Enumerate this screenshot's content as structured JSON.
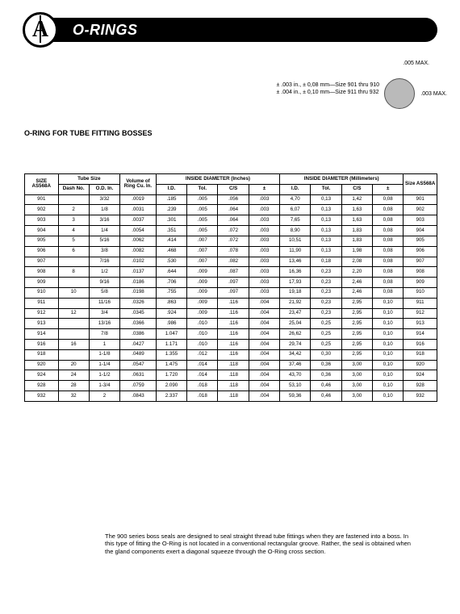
{
  "header": {
    "title": "O-RINGS"
  },
  "diagram": {
    "top_label": ".005 MAX.",
    "left_line1": "± .003 in., ± 0,08 mm—Size 901 thru 910",
    "left_line2": "± .004 in., ± 0,10 mm—Size 911 thru 932",
    "right_label": ".003 MAX."
  },
  "section_title": "O-RING FOR TUBE FITTING BOSSES",
  "table": {
    "headers": {
      "size": "SIZE AS568A",
      "tube_size": "Tube Size",
      "dash": "Dash No.",
      "od": "O.D. In.",
      "vol": "Volume of Ring Cu. In.",
      "id_in": "INSIDE DIAMETER (Inches)",
      "id_mm": "INSIDE DIAMETER (Millimeters)",
      "id": "I.D.",
      "tol": "Tol.",
      "cs": "C/S",
      "pm": "±",
      "size2": "Size AS568A"
    },
    "rows": [
      {
        "size": "901",
        "dash": "",
        "od": "3/32",
        "vol": ".0019",
        "iid": ".185",
        "itol": ".005",
        "ics": ".056",
        "ipm": ".003",
        "mid": "4,70",
        "mtol": "0,13",
        "mcs": "1,42",
        "mpm": "0,08",
        "size2": "901"
      },
      {
        "size": "902",
        "dash": "2",
        "od": "1/8",
        "vol": ".0031",
        "iid": ".239",
        "itol": ".005",
        "ics": ".064",
        "ipm": ".003",
        "mid": "6,07",
        "mtol": "0,13",
        "mcs": "1,63",
        "mpm": "0,08",
        "size2": "902"
      },
      {
        "size": "903",
        "dash": "3",
        "od": "3/16",
        "vol": ".0037",
        "iid": ".301",
        "itol": ".005",
        "ics": ".064",
        "ipm": ".003",
        "mid": "7,65",
        "mtol": "0,13",
        "mcs": "1,63",
        "mpm": "0,08",
        "size2": "903"
      },
      {
        "size": "904",
        "dash": "4",
        "od": "1/4",
        "vol": ".0054",
        "iid": ".351",
        "itol": ".005",
        "ics": ".072",
        "ipm": ".003",
        "mid": "8,90",
        "mtol": "0,13",
        "mcs": "1,83",
        "mpm": "0,08",
        "size2": "904"
      },
      {
        "size": "905",
        "dash": "5",
        "od": "5/16",
        "vol": ".0062",
        "iid": ".414",
        "itol": ".007",
        "ics": ".072",
        "ipm": ".003",
        "mid": "10,51",
        "mtol": "0,13",
        "mcs": "1,83",
        "mpm": "0,08",
        "size2": "905"
      },
      {
        "size": "906",
        "dash": "6",
        "od": "3/8",
        "vol": ".0082",
        "iid": ".468",
        "itol": ".007",
        "ics": ".078",
        "ipm": ".003",
        "mid": "11,90",
        "mtol": "0,13",
        "mcs": "1,98",
        "mpm": "0,08",
        "size2": "906"
      },
      {
        "size": "907",
        "dash": "",
        "od": "7/16",
        "vol": ".0102",
        "iid": ".530",
        "itol": ".007",
        "ics": ".082",
        "ipm": ".003",
        "mid": "13,46",
        "mtol": "0,18",
        "mcs": "2,08",
        "mpm": "0,08",
        "size2": "907"
      },
      {
        "size": "908",
        "dash": "8",
        "od": "1/2",
        "vol": ".0137",
        "iid": ".644",
        "itol": ".009",
        "ics": ".087",
        "ipm": ".003",
        "mid": "16,36",
        "mtol": "0,23",
        "mcs": "2,20",
        "mpm": "0,08",
        "size2": "908"
      },
      {
        "size": "909",
        "dash": "",
        "od": "9/16",
        "vol": ".0186",
        "iid": ".706",
        "itol": ".009",
        "ics": ".097",
        "ipm": ".003",
        "mid": "17,93",
        "mtol": "0,23",
        "mcs": "2,46",
        "mpm": "0,08",
        "size2": "909"
      },
      {
        "size": "910",
        "dash": "10",
        "od": "5/8",
        "vol": ".0198",
        "iid": ".755",
        "itol": ".009",
        "ics": ".097",
        "ipm": ".003",
        "mid": "19,18",
        "mtol": "0,23",
        "mcs": "2,46",
        "mpm": "0,08",
        "size2": "910"
      },
      {
        "size": "911",
        "dash": "",
        "od": "11/16",
        "vol": ".0326",
        "iid": ".863",
        "itol": ".009",
        "ics": ".116",
        "ipm": ".004",
        "mid": "21,92",
        "mtol": "0,23",
        "mcs": "2,95",
        "mpm": "0,10",
        "size2": "911"
      },
      {
        "size": "912",
        "dash": "12",
        "od": "3/4",
        "vol": ".0345",
        "iid": ".924",
        "itol": ".009",
        "ics": ".116",
        "ipm": ".004",
        "mid": "23,47",
        "mtol": "0,23",
        "mcs": "2,95",
        "mpm": "0,10",
        "size2": "912"
      },
      {
        "size": "913",
        "dash": "",
        "od": "13/16",
        "vol": ".0366",
        "iid": ".986",
        "itol": ".010",
        "ics": ".116",
        "ipm": ".004",
        "mid": "25,04",
        "mtol": "0,25",
        "mcs": "2,95",
        "mpm": "0,10",
        "size2": "913"
      },
      {
        "size": "914",
        "dash": "",
        "od": "7/8",
        "vol": ".0386",
        "iid": "1.047",
        "itol": ".010",
        "ics": ".116",
        "ipm": ".004",
        "mid": "26,62",
        "mtol": "0,25",
        "mcs": "2,95",
        "mpm": "0,10",
        "size2": "914"
      },
      {
        "size": "916",
        "dash": "16",
        "od": "1",
        "vol": ".0427",
        "iid": "1.171",
        "itol": ".010",
        "ics": ".116",
        "ipm": ".004",
        "mid": "29,74",
        "mtol": "0,25",
        "mcs": "2,95",
        "mpm": "0,10",
        "size2": "916"
      },
      {
        "size": "918",
        "dash": "",
        "od": "1-1/8",
        "vol": ".0489",
        "iid": "1.355",
        "itol": ".012",
        "ics": ".116",
        "ipm": ".004",
        "mid": "34,42",
        "mtol": "0,30",
        "mcs": "2,95",
        "mpm": "0,10",
        "size2": "918"
      },
      {
        "size": "920",
        "dash": "20",
        "od": "1-1/4",
        "vol": ".0547",
        "iid": "1.475",
        "itol": ".014",
        "ics": ".118",
        "ipm": ".004",
        "mid": "37,46",
        "mtol": "0,36",
        "mcs": "3,00",
        "mpm": "0,10",
        "size2": "920"
      },
      {
        "size": "924",
        "dash": "24",
        "od": "1-1/2",
        "vol": ".0631",
        "iid": "1.720",
        "itol": ".014",
        "ics": ".118",
        "ipm": ".004",
        "mid": "43,70",
        "mtol": "0,36",
        "mcs": "3,00",
        "mpm": "0,10",
        "size2": "924"
      },
      {
        "size": "928",
        "dash": "28",
        "od": "1-3/4",
        "vol": ".0759",
        "iid": "2.090",
        "itol": ".018",
        "ics": ".118",
        "ipm": ".004",
        "mid": "53,10",
        "mtol": "0,46",
        "mcs": "3,00",
        "mpm": "0,10",
        "size2": "928"
      },
      {
        "size": "932",
        "dash": "32",
        "od": "2",
        "vol": ".0843",
        "iid": "2.337",
        "itol": ".018",
        "ics": ".118",
        "ipm": ".004",
        "mid": "59,36",
        "mtol": "0,46",
        "mcs": "3,00",
        "mpm": "0,10",
        "size2": "932"
      }
    ]
  },
  "footer": "The 900 series boss seals are designed to seal straight thread tube fittings when they are fastened into a boss. In this type of fitting the O-Ring is not located in a conventional rectangular groove. Rather, the seal is obtained when the gland components exert a diagonal squeeze through the O-Ring cross section."
}
